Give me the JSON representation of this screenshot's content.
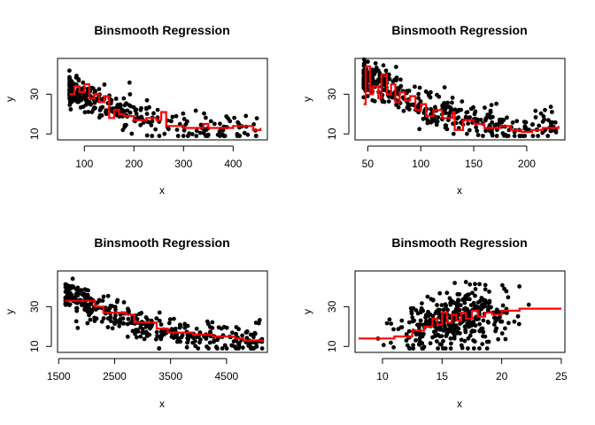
{
  "colors": {
    "points": "#000000",
    "fit_line": "#ff0000",
    "frame": "#000000",
    "background": "#ffffff"
  },
  "chart_data": [
    {
      "type": "scatter",
      "title": "Binsmooth Regression",
      "xlabel": "x",
      "ylabel": "y",
      "xlim": [
        46,
        469
      ],
      "ylim": [
        7,
        48
      ],
      "xticks": [
        "100",
        "200",
        "300",
        "400"
      ],
      "yticks": [
        "10",
        "30"
      ],
      "series": [
        {
          "type": "scatter",
          "seed": 1,
          "n": 300,
          "x_range": [
            70,
            455
          ],
          "x_skew": 2.3,
          "trend": [
            [
              70,
              33
            ],
            [
              100,
              30
            ],
            [
              150,
              24
            ],
            [
              200,
              19
            ],
            [
              250,
              17
            ],
            [
              300,
              14
            ],
            [
              350,
              13
            ],
            [
              455,
              12
            ]
          ],
          "spread": 4.5,
          "values": []
        },
        {
          "type": "step",
          "values": [
            [
              70,
              30
            ],
            [
              80,
              34
            ],
            [
              90,
              31
            ],
            [
              100,
              35
            ],
            [
              110,
              28
            ],
            [
              120,
              30
            ],
            [
              130,
              26
            ],
            [
              140,
              29
            ],
            [
              150,
              18
            ],
            [
              160,
              22
            ],
            [
              170,
              20
            ],
            [
              180,
              19
            ],
            [
              200,
              17
            ],
            [
              225,
              18
            ],
            [
              245,
              17
            ],
            [
              255,
              21
            ],
            [
              265,
              14
            ],
            [
              300,
              13
            ],
            [
              340,
              15
            ],
            [
              350,
              13
            ],
            [
              400,
              14
            ],
            [
              440,
              12
            ],
            [
              455,
              13
            ]
          ]
        }
      ]
    },
    {
      "type": "scatter",
      "title": "Binsmooth Regression",
      "xlabel": "x",
      "ylabel": "y",
      "xlim": [
        38,
        236
      ],
      "ylim": [
        7,
        48
      ],
      "xticks": [
        "50",
        "100",
        "150",
        "200"
      ],
      "yticks": [
        "10",
        "30"
      ],
      "series": [
        {
          "type": "scatter",
          "seed": 2,
          "n": 390,
          "x_range": [
            46,
            230
          ],
          "x_skew": 1.8,
          "trend": [
            [
              46,
              38
            ],
            [
              60,
              35
            ],
            [
              80,
              30
            ],
            [
              100,
              24
            ],
            [
              130,
              19
            ],
            [
              160,
              15
            ],
            [
              200,
              12
            ],
            [
              230,
              14
            ]
          ],
          "spread": 4.5,
          "values": []
        },
        {
          "type": "step",
          "values": [
            [
              46,
              25
            ],
            [
              48,
              44
            ],
            [
              52,
              30
            ],
            [
              55,
              34
            ],
            [
              60,
              28
            ],
            [
              63,
              40
            ],
            [
              68,
              30
            ],
            [
              72,
              35
            ],
            [
              76,
              26
            ],
            [
              80,
              31
            ],
            [
              85,
              27
            ],
            [
              90,
              29
            ],
            [
              95,
              22
            ],
            [
              100,
              25
            ],
            [
              105,
              19
            ],
            [
              112,
              22
            ],
            [
              120,
              18
            ],
            [
              130,
              21
            ],
            [
              132,
              12
            ],
            [
              140,
              17
            ],
            [
              150,
              15
            ],
            [
              160,
              13
            ],
            [
              175,
              14
            ],
            [
              185,
              12
            ],
            [
              195,
              11
            ],
            [
              205,
              12
            ],
            [
              215,
              13
            ],
            [
              230,
              14
            ]
          ]
        }
      ]
    },
    {
      "type": "scatter",
      "title": "Binsmooth Regression",
      "xlabel": "x",
      "ylabel": "y",
      "xlim": [
        1480,
        5230
      ],
      "ylim": [
        7,
        48
      ],
      "xticks": [
        "1500",
        "2500",
        "3500",
        "4500"
      ],
      "yticks": [
        "10",
        "30"
      ],
      "series": [
        {
          "type": "scatter",
          "seed": 3,
          "n": 390,
          "x_range": [
            1620,
            5140
          ],
          "x_skew": 1.5,
          "trend": [
            [
              1620,
              36
            ],
            [
              2000,
              32
            ],
            [
              2500,
              26
            ],
            [
              3000,
              21
            ],
            [
              3500,
              17
            ],
            [
              4000,
              15
            ],
            [
              4500,
              14
            ],
            [
              5140,
              12
            ]
          ],
          "spread": 4,
          "values": []
        },
        {
          "type": "step",
          "values": [
            [
              1620,
              33
            ],
            [
              2150,
              30
            ],
            [
              2300,
              27
            ],
            [
              2700,
              26
            ],
            [
              2850,
              22
            ],
            [
              3250,
              19
            ],
            [
              3450,
              17
            ],
            [
              3900,
              16
            ],
            [
              4250,
              15
            ],
            [
              4650,
              14
            ],
            [
              4800,
              13
            ],
            [
              5140,
              12
            ]
          ]
        }
      ]
    },
    {
      "type": "scatter",
      "title": "Binsmooth Regression",
      "xlabel": "x",
      "ylabel": "y",
      "xlim": [
        7.7,
        25.3
      ],
      "ylim": [
        7,
        48
      ],
      "xticks": [
        "10",
        "15",
        "20",
        "25"
      ],
      "yticks": [
        "10",
        "30"
      ],
      "series": [
        {
          "type": "scatter",
          "seed": 4,
          "n": 390,
          "x_range": [
            8,
            25
          ],
          "x_center": 16,
          "x_sd": 2.3,
          "trend": [
            [
              8,
              14
            ],
            [
              12,
              18
            ],
            [
              14,
              22
            ],
            [
              16,
              24
            ],
            [
              18,
              25
            ],
            [
              22,
              27
            ],
            [
              25,
              28
            ]
          ],
          "spread": 7,
          "values": []
        },
        {
          "type": "step",
          "values": [
            [
              8,
              14
            ],
            [
              11,
              15
            ],
            [
              12.5,
              18
            ],
            [
              13.5,
              20
            ],
            [
              14.2,
              24
            ],
            [
              14.6,
              21
            ],
            [
              15,
              27
            ],
            [
              15.4,
              22
            ],
            [
              15.8,
              26
            ],
            [
              16.2,
              23
            ],
            [
              16.6,
              27
            ],
            [
              17,
              24
            ],
            [
              17.5,
              28
            ],
            [
              18,
              25
            ],
            [
              18.6,
              27
            ],
            [
              19.2,
              26
            ],
            [
              20,
              28
            ],
            [
              21.5,
              29
            ],
            [
              25,
              29
            ]
          ]
        }
      ]
    }
  ]
}
